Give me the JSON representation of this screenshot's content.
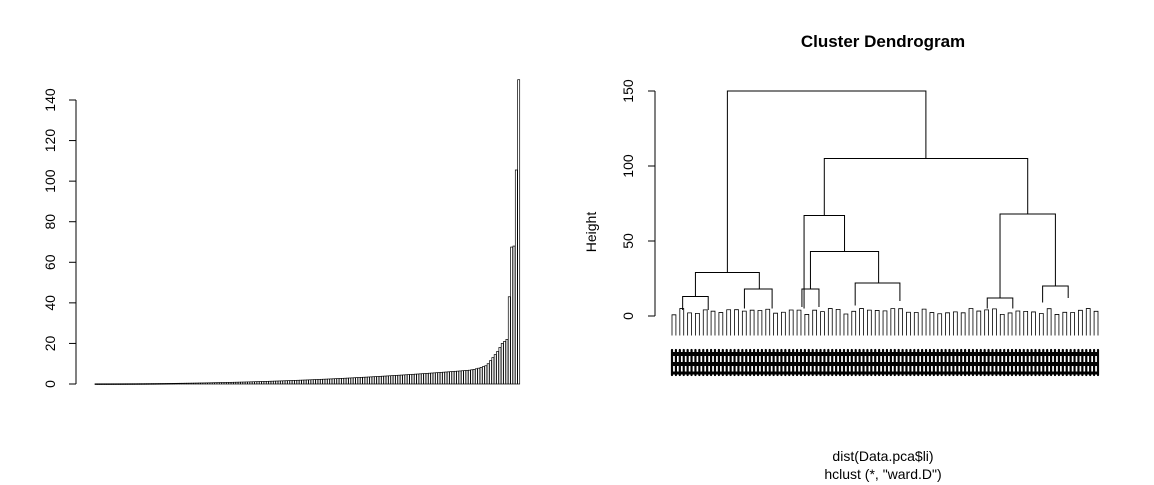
{
  "chart_data": [
    {
      "type": "bar",
      "description_source": "sorted bar chart (barplot of sorted merge heights)",
      "ylim": [
        0,
        150
      ],
      "yticks": [
        "0",
        "20",
        "40",
        "60",
        "80",
        "100",
        "120",
        "140"
      ],
      "ytick_values": [
        0,
        20,
        40,
        60,
        80,
        100,
        120,
        140
      ],
      "n_bars": 181,
      "values_tail": [
        7,
        7.2,
        7.5,
        7.8,
        8.2,
        8.6,
        9,
        10,
        11.5,
        13,
        14.5,
        16,
        18,
        20,
        21,
        22,
        43,
        67.5,
        68,
        105.5,
        150
      ],
      "values_head_pattern": {
        "start": 0.1,
        "end": 6.8
      },
      "grid": false,
      "legend": null
    },
    {
      "type": "dendrogram",
      "title": "Cluster Dendrogram",
      "ylabel": "Height",
      "xlabel_line1": "dist(Data.pca$li)",
      "xlabel_line2": "hclust (*, \"ward.D\")",
      "ylim": [
        0,
        150
      ],
      "yticks": [
        "0",
        "50",
        "100",
        "150"
      ],
      "ytick_values": [
        0,
        50,
        100,
        150
      ],
      "merges": [
        {
          "left_x": 0.07,
          "right_x": 0.16,
          "height": 29
        },
        {
          "left_x": 0.23,
          "right_x": 0.56,
          "height": 67
        },
        {
          "left_x": 0.16,
          "right_x": 0.44,
          "height": 43
        },
        {
          "left_x": 0.72,
          "right_x": 0.94,
          "height": 68
        },
        {
          "left_x": 0.45,
          "right_x": 0.83,
          "height": 105
        },
        {
          "left_x": 0.115,
          "right_x": 0.64,
          "height": 150
        }
      ]
    }
  ]
}
